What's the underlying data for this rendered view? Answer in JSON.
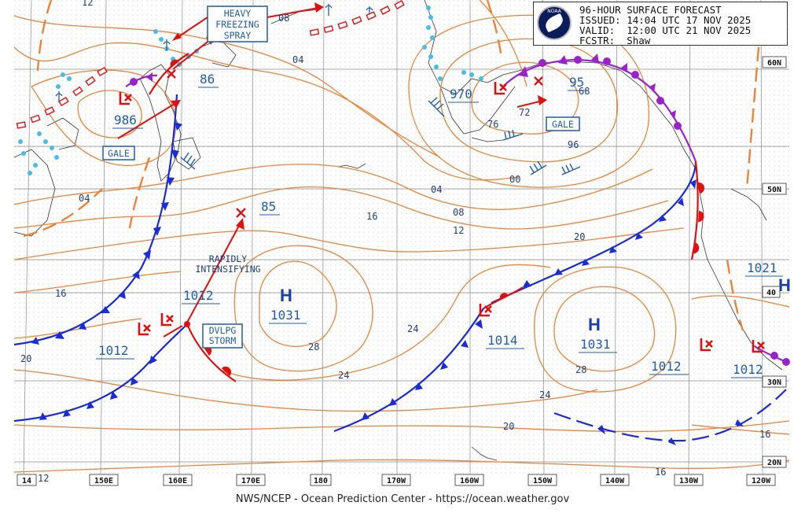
{
  "header": {
    "title": "96-HOUR SURFACE FORECAST",
    "issued_label": "ISSUED:",
    "issued": "14:04 UTC 17 NOV 2025",
    "valid_label": "VALID:",
    "valid": "12:00 UTC 21 NOV 2025",
    "forecaster_label": "FCSTR:",
    "forecaster": "Shaw",
    "logo_text": "NOAA"
  },
  "footer": "NWS/NCEP - Ocean Prediction Center - https://ocean.weather.gov",
  "longitude_labels": [
    "14",
    "150E",
    "160E",
    "170E",
    "180",
    "170W",
    "160W",
    "150W",
    "140W",
    "130W",
    "120W"
  ],
  "latitude_labels": [
    "60N",
    "50N",
    "40",
    "30N",
    "20N"
  ],
  "top_left_label": "12",
  "bottom_left_label": "12",
  "pressure_systems": [
    {
      "type": "L",
      "value": "986"
    },
    {
      "type": "L",
      "value": "970"
    },
    {
      "type": "L",
      "value": "1012"
    },
    {
      "type": "L",
      "value": "1012"
    },
    {
      "type": "L",
      "value": "1012"
    },
    {
      "type": "H",
      "value": "1031"
    },
    {
      "type": "H",
      "value": "1031"
    },
    {
      "type": "H",
      "value": "1021"
    }
  ],
  "forecast_points": [
    "86",
    "85",
    "95"
  ],
  "isobar_labels": [
    "08",
    "04",
    "04",
    "04",
    "08",
    "12",
    "16",
    "20",
    "24",
    "24",
    "24",
    "28",
    "28",
    "20",
    "16",
    "16",
    "16",
    "20",
    "00",
    "96",
    "72",
    "76",
    "68",
    "1014",
    "1012",
    "1012"
  ],
  "warning_boxes": {
    "heavy_freezing_spray": [
      "HEAVY",
      "FREEZING",
      "SPRAY"
    ],
    "gale_west": "GALE",
    "gale_east": "GALE",
    "dvlpg_storm": [
      "DVLPG",
      "STORM"
    ]
  },
  "annotations": {
    "rapidly_intensifying": [
      "RAPIDLY",
      "INTENSIFYING"
    ]
  },
  "colors": {
    "isobar": "#e8843a",
    "cold_front": "#1a2bd8",
    "warm_front": "#e01010",
    "occluded_front": "#9a22cc",
    "ice_edge": "#44bfe6",
    "low_marker": "#e01010",
    "high_marker": "#1a3fa8",
    "label_blue": "#1f5da8",
    "trough": "#e8843a"
  }
}
